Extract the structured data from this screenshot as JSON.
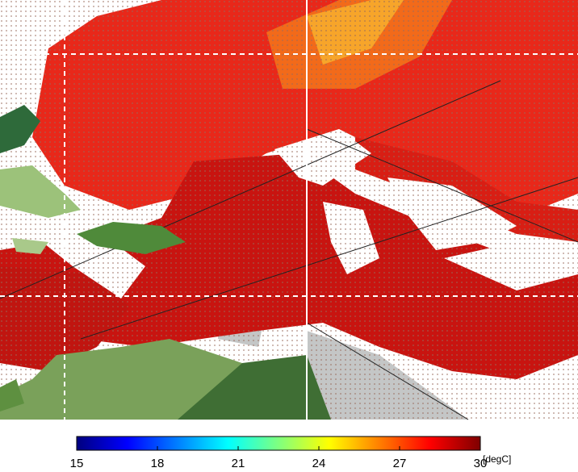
{
  "colorbar": {
    "range": [
      15,
      30
    ],
    "ticks": [
      15,
      18,
      21,
      24,
      27,
      30
    ],
    "unit": "[degC]",
    "colors": [
      "#00007f",
      "#0000ff",
      "#007fff",
      "#00ffff",
      "#7fff7f",
      "#ffff00",
      "#ff7f00",
      "#ff0000",
      "#7f0000"
    ]
  }
}
